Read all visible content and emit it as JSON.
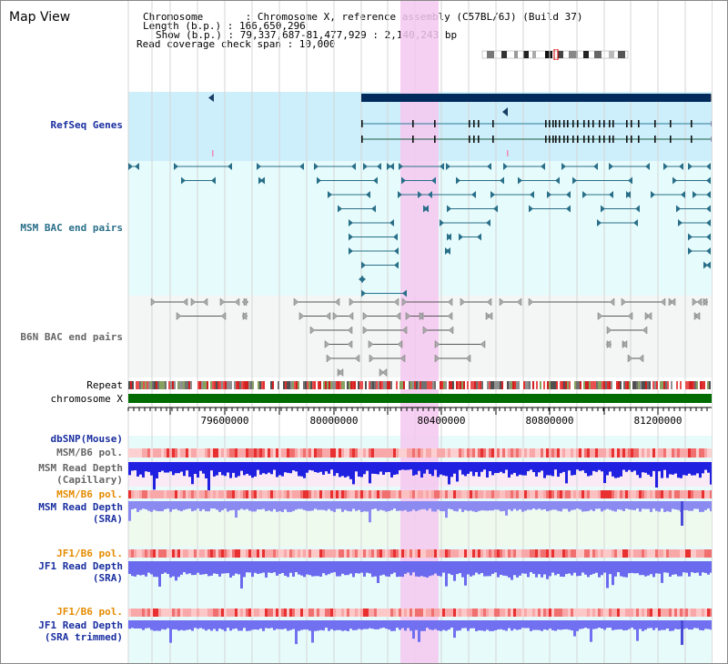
{
  "app": {
    "title": "Map View"
  },
  "info": {
    "lines": [
      "Chromosome       : Chromosome X, reference assembly (C57BL/6J) (Build 37)",
      "Length (b.p.) : 166,650,296",
      "Show (b.p.) : 79,337,687-81,477,929 : 2,140,243 bp",
      "Read coverage check span : 10,000"
    ]
  },
  "colors": {
    "gene_bg": "#cdeefb",
    "bac_bg": "#e6fbfb",
    "b6n_bg": "#f4f6f6",
    "highlight": "#f5d0f3",
    "dark_bar": "#002a5c",
    "teal": "#2a6f89",
    "gray": "#555555",
    "label_blue": "#1a2fa0",
    "label_teal": "#2a6f89",
    "label_orange": "#e58b00",
    "label_gray": "#666666",
    "chrom_green": "#006b00"
  },
  "tracks": {
    "refseq": "RefSeq Genes",
    "msm_bac": "MSM BAC end pairs",
    "b6n_bac": "B6N BAC end pairs",
    "repeat": "Repeat",
    "chromosome": "chromosome X",
    "dbsnp": "dbSNP(Mouse)",
    "msm_b6_pol_1": "MSM/B6 pol.",
    "msm_read_depth_cap": "MSM Read Depth\n(Capillary)",
    "msm_b6_pol_2": "MSM/B6 pol.",
    "msm_read_depth_sra": "MSM Read Depth\n(SRA)",
    "jf1_b6_pol_1": "JF1/B6 pol.",
    "jf1_read_depth_sra": "JF1 Read Depth\n(SRA)",
    "jf1_b6_pol_2": "JF1/B6 pol.",
    "jf1_read_depth_trim": "JF1 Read Depth\n(SRA trimmed)"
  },
  "axis": {
    "ticks": [
      "79600000",
      "80000000",
      "80400000",
      "80800000",
      "81200000"
    ]
  }
}
